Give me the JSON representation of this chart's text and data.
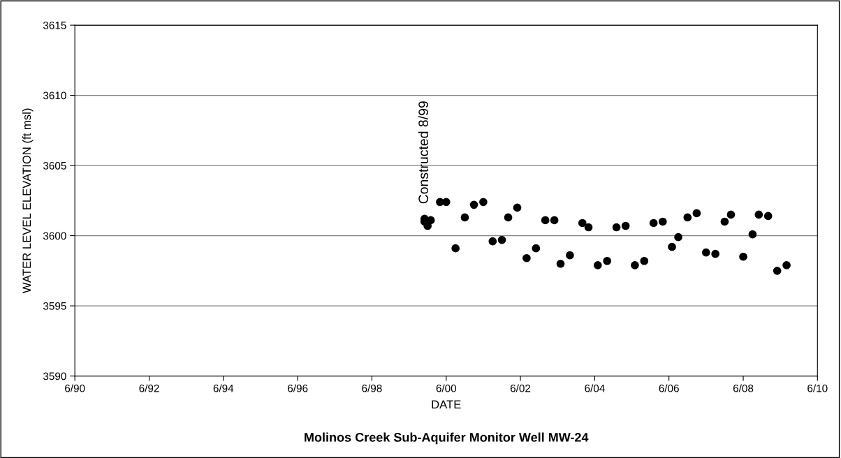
{
  "chart_data": {
    "type": "scatter",
    "title": "Molinos Creek Sub-Aquifer Monitor Well MW-24",
    "xlabel": "DATE",
    "ylabel": "WATER LEVEL ELEVATION (ft msl)",
    "x": [
      "1999-11",
      "1999-11",
      "1999-12",
      "2000-01",
      "2000-04",
      "2000-06",
      "2000-09",
      "2000-12",
      "2001-03",
      "2001-06",
      "2001-09",
      "2001-12",
      "2002-02",
      "2002-05",
      "2002-08",
      "2002-11",
      "2003-02",
      "2003-05",
      "2003-07",
      "2003-10",
      "2004-02",
      "2004-04",
      "2004-07",
      "2004-10",
      "2005-01",
      "2005-04",
      "2005-07",
      "2005-10",
      "2006-01",
      "2006-04",
      "2006-07",
      "2006-09",
      "2006-12",
      "2007-03",
      "2007-06",
      "2007-09",
      "2007-12",
      "2008-02",
      "2008-06",
      "2008-09",
      "2008-11",
      "2009-02",
      "2009-05",
      "2009-08"
    ],
    "values": [
      3601.2,
      3601.0,
      3600.7,
      3601.1,
      3602.4,
      3602.4,
      3599.1,
      3601.3,
      3602.2,
      3602.4,
      3599.6,
      3599.7,
      3601.3,
      3602.0,
      3598.4,
      3599.1,
      3601.1,
      3601.1,
      3598.0,
      3598.6,
      3600.9,
      3600.6,
      3597.9,
      3598.2,
      3600.6,
      3600.7,
      3597.9,
      3598.2,
      3600.9,
      3601.0,
      3599.2,
      3599.9,
      3601.3,
      3601.6,
      3598.8,
      3598.7,
      3601.0,
      3601.5,
      3598.5,
      3600.1,
      3601.5,
      3601.4,
      3597.5,
      3597.9
    ],
    "color": "#000000",
    "marker": "circle",
    "xlim": [
      "1990-06",
      "2010-06"
    ],
    "xticks": [
      {
        "value": "1990-06",
        "label": "6/90"
      },
      {
        "value": "1992-06",
        "label": "6/92"
      },
      {
        "value": "1994-06",
        "label": "6/94"
      },
      {
        "value": "1996-06",
        "label": "6/96"
      },
      {
        "value": "1998-06",
        "label": "6/98"
      },
      {
        "value": "2000-06",
        "label": "6/00"
      },
      {
        "value": "2002-06",
        "label": "6/02"
      },
      {
        "value": "2004-06",
        "label": "6/04"
      },
      {
        "value": "2006-06",
        "label": "6/06"
      },
      {
        "value": "2008-06",
        "label": "6/08"
      },
      {
        "value": "2010-06",
        "label": "6/10"
      }
    ],
    "ylim": [
      3590,
      3615
    ],
    "yticks": [
      3590,
      3595,
      3600,
      3605,
      3610,
      3615
    ],
    "grid": "y",
    "annotations": [
      "Constructed 8/99"
    ]
  }
}
